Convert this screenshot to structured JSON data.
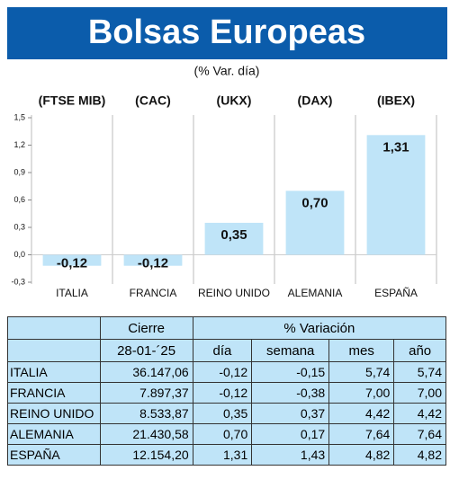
{
  "chart_data": {
    "type": "bar",
    "title": "Bolsas Europeas",
    "subtitle": "(% Var. día)",
    "index_labels": [
      "(FTSE MIB)",
      "(CAC)",
      "(UKX)",
      "(DAX)",
      "(IBEX)"
    ],
    "categories": [
      "ITALIA",
      "FRANCIA",
      "REINO UNIDO",
      "ALEMANIA",
      "ESPAÑA"
    ],
    "values": [
      -0.12,
      -0.12,
      0.35,
      0.7,
      1.31
    ],
    "value_labels": [
      "-0,12",
      "-0,12",
      "0,35",
      "0,70",
      "1,31"
    ],
    "color": "#bfe4f8",
    "ylim": [
      -0.3,
      1.5
    ],
    "yticks": [
      {
        "value": -0.3,
        "label": "-0,3"
      },
      {
        "value": 0,
        "label": "0,0"
      },
      {
        "value": 0.3,
        "label": "0,3"
      },
      {
        "value": 0.6,
        "label": "0,6"
      },
      {
        "value": 0.9,
        "label": "0,9"
      },
      {
        "value": 1.2,
        "label": "1,2"
      },
      {
        "value": 1.5,
        "label": "1,5"
      }
    ]
  },
  "table": {
    "group_headers": [
      "Cierre",
      "% Variación"
    ],
    "headers": [
      "28-01-´25",
      "día",
      "semana",
      "mes",
      "año"
    ],
    "rows": [
      [
        "ITALIA",
        "36.147,06",
        "-0,12",
        "-0,15",
        "5,74",
        "5,74"
      ],
      [
        "FRANCIA",
        "7.897,37",
        "-0,12",
        "-0,38",
        "7,00",
        "7,00"
      ],
      [
        "REINO UNIDO",
        "8.533,87",
        "0,35",
        "0,37",
        "4,42",
        "4,42"
      ],
      [
        "ALEMANIA",
        "21.430,58",
        "0,70",
        "0,17",
        "7,64",
        "7,64"
      ],
      [
        "ESPAÑA",
        "12.154,20",
        "1,31",
        "1,43",
        "4,82",
        "4,82"
      ]
    ]
  }
}
